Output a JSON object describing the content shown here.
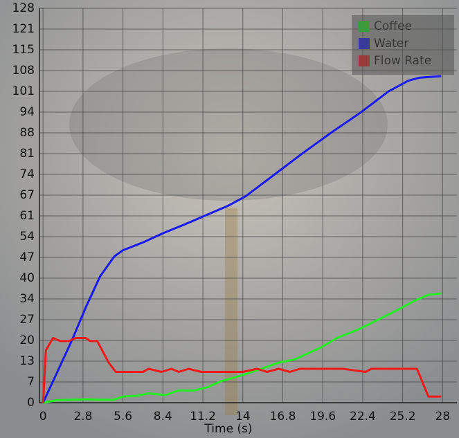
{
  "chart_data": {
    "type": "line",
    "x_label": "Time (s)",
    "xlim": [
      -0.25,
      29
    ],
    "ylim": [
      0,
      128
    ],
    "grid": true,
    "legend": "top-right",
    "xticks": [
      0,
      2.8,
      5.6,
      8.4,
      11.2,
      14,
      16.8,
      19.6,
      22.4,
      25.2,
      28
    ],
    "yticks": [
      0,
      {
        "value": 6.737,
        "label": "7"
      },
      {
        "value": 13.474,
        "label": "13"
      },
      {
        "value": 20.211,
        "label": "20"
      },
      {
        "value": 26.947,
        "label": "27"
      },
      {
        "value": 33.684,
        "label": "34"
      },
      {
        "value": 40.421,
        "label": "40"
      },
      {
        "value": 47.158,
        "label": "47"
      },
      {
        "value": 53.895,
        "label": "54"
      },
      {
        "value": 60.632,
        "label": "61"
      },
      {
        "value": 67.368,
        "label": "67"
      },
      {
        "value": 74.105,
        "label": "74"
      },
      {
        "value": 80.842,
        "label": "81"
      },
      {
        "value": 87.579,
        "label": "88"
      },
      {
        "value": 94.316,
        "label": "94"
      },
      {
        "value": 101.053,
        "label": "101"
      },
      {
        "value": 107.789,
        "label": "108"
      },
      {
        "value": 114.526,
        "label": "115"
      },
      {
        "value": 121.263,
        "label": "121"
      },
      128
    ],
    "series": [
      {
        "name": "Coffee",
        "color": "#22ee22",
        "x": [
          0,
          1,
          2,
          3,
          4,
          5,
          5.6,
          6.5,
          7.4,
          8.6,
          9.5,
          10.6,
          11.5,
          12.5,
          14,
          15.3,
          16.5,
          17.6,
          19.5,
          20.6,
          22.2,
          23.5,
          24.8,
          26,
          27,
          27.9
        ],
        "values": [
          0,
          0.8,
          1,
          1.1,
          1,
          1,
          2,
          2.2,
          3,
          2.5,
          4,
          4,
          5,
          7,
          9,
          11,
          13,
          14,
          18,
          21,
          24,
          27,
          30,
          33,
          35,
          35.5
        ]
      },
      {
        "name": "Water",
        "color": "#1a1aee",
        "x": [
          0,
          1,
          2,
          3,
          4,
          5,
          5.6,
          7,
          8.4,
          10,
          11.5,
          13,
          14.2,
          15.2,
          16.2,
          18.2,
          20.3,
          22.2,
          24.2,
          25.6,
          26.4,
          27.9
        ],
        "values": [
          0,
          10,
          20,
          31,
          41,
          47.5,
          49.5,
          52,
          55,
          58,
          61,
          64,
          67,
          70.5,
          74,
          81,
          88,
          94,
          101,
          104.5,
          105.5,
          106
        ]
      },
      {
        "name": "Flow Rate",
        "color": "#ee1a1a",
        "x": [
          0,
          0.2,
          0.7,
          1.2,
          1.8,
          2.3,
          3,
          3.3,
          3.8,
          4.6,
          5.1,
          7,
          7.4,
          8.3,
          9,
          9.5,
          10.2,
          11.1,
          12,
          13,
          14,
          15,
          15.7,
          16.5,
          17.3,
          18,
          19,
          21,
          22.6,
          23,
          26.2,
          27,
          27.9
        ],
        "values": [
          0,
          17,
          21,
          20,
          20,
          21,
          21,
          20,
          20,
          13,
          10,
          10,
          11,
          10,
          11,
          10,
          11,
          10,
          10,
          10,
          10,
          11,
          10,
          11,
          10,
          11,
          11,
          11,
          10,
          11,
          11,
          2,
          2
        ]
      }
    ]
  }
}
